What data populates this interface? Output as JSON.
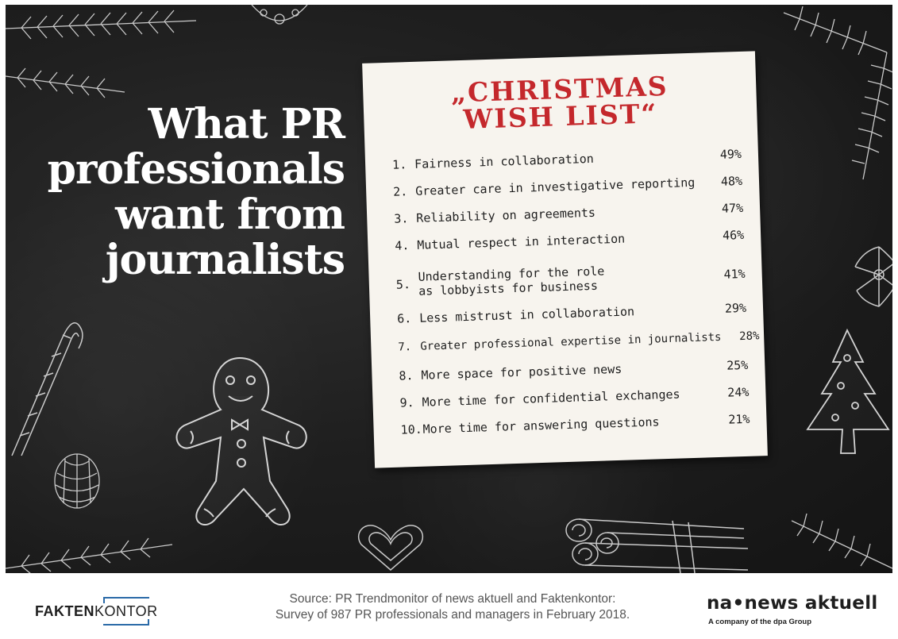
{
  "headline": {
    "lines": [
      "What PR",
      "professionals",
      "want from",
      "journalists"
    ]
  },
  "wish_card": {
    "title_lines": [
      "„CHRISTMAS",
      "WISH LIST“"
    ],
    "items": [
      {
        "number": "1.",
        "text": "Fairness in collaboration",
        "percent": "49%"
      },
      {
        "number": "2.",
        "text": "Greater care in investigative reporting",
        "percent": "48%"
      },
      {
        "number": "3.",
        "text": "Reliability on agreements",
        "percent": "47%"
      },
      {
        "number": "4.",
        "text": "Mutual respect in interaction",
        "percent": "46%"
      },
      {
        "number": "5.",
        "text": "Understanding for the role\nas lobbyists for business",
        "percent": "41%"
      },
      {
        "number": "6.",
        "text": "Less mistrust in collaboration",
        "percent": "29%"
      },
      {
        "number": "7.",
        "text": "Greater professional expertise in journalists",
        "percent": "28%"
      },
      {
        "number": "8.",
        "text": "More space for positive news",
        "percent": "25%"
      },
      {
        "number": "9.",
        "text": "More time for confidential exchanges",
        "percent": "24%"
      },
      {
        "number": "10.",
        "text": "More time for answering questions",
        "percent": "21%"
      }
    ]
  },
  "footer": {
    "faktenkontor": {
      "bold": "FAKTEN",
      "light": "KONTOR"
    },
    "source_lines": [
      "Source: PR Trendmonitor of news aktuell and Faktenkontor:",
      "Survey of 987 PR professionals and managers in February 2018."
    ],
    "news_aktuell": {
      "name": "na•news aktuell",
      "tagline": "A company of the dpa Group"
    }
  },
  "colors": {
    "board": "#1e1e1e",
    "card": "#f7f4ee",
    "title_red": "#c4282c",
    "logo_blue": "#2a6aa8"
  },
  "decorations": [
    "fir-branch-icon",
    "gingerbread-man-icon",
    "candy-cane-icon",
    "pine-cone-icon",
    "heart-cookie-icon",
    "cinnamon-sticks-icon",
    "star-anise-icon",
    "tree-cookie-icon",
    "snowflake-cookie-icon"
  ]
}
